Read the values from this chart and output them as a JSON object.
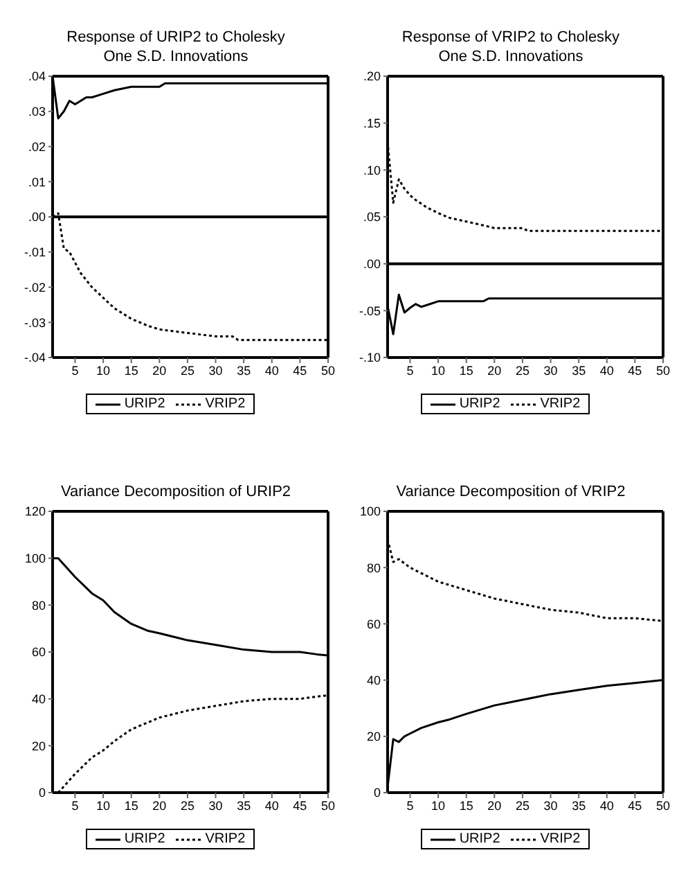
{
  "chart_data": [
    {
      "type": "line",
      "title": "Response of URIP2 to Cholesky One S.D. Innovations",
      "xlim": [
        1,
        50
      ],
      "xticks": [
        5,
        10,
        15,
        20,
        25,
        30,
        35,
        40,
        45,
        50
      ],
      "ylim": [
        -0.04,
        0.04
      ],
      "yticks": [
        {
          "value": -0.04,
          "label": "-.04"
        },
        {
          "value": -0.03,
          "label": "-.03"
        },
        {
          "value": -0.02,
          "label": "-.02"
        },
        {
          "value": -0.01,
          "label": "-.01"
        },
        {
          "value": 0,
          "label": ".00"
        },
        {
          "value": 0.01,
          "label": ".01"
        },
        {
          "value": 0.02,
          "label": ".02"
        },
        {
          "value": 0.03,
          "label": ".03"
        },
        {
          "value": 0.04,
          "label": ".04"
        }
      ],
      "legend": "bottom",
      "ref_lines": [
        {
          "axis": "y",
          "value": 0,
          "color": "#000000"
        }
      ],
      "series": [
        {
          "name": "URIP2",
          "color": "#000000",
          "line_style": "solid",
          "x": [
            1,
            2,
            3,
            4,
            5,
            6,
            7,
            8,
            10,
            12,
            15,
            20,
            21,
            30,
            40,
            50
          ],
          "values": [
            0.04,
            0.028,
            0.03,
            0.033,
            0.032,
            0.033,
            0.034,
            0.034,
            0.035,
            0.036,
            0.037,
            0.037,
            0.038,
            0.038,
            0.038,
            0.038
          ]
        },
        {
          "name": "VRIP2",
          "color": "#000000",
          "line_style": "dotted",
          "x": [
            1,
            2,
            3,
            4,
            5,
            6,
            7,
            8,
            10,
            12,
            15,
            18,
            20,
            25,
            30,
            33,
            34,
            40,
            50
          ],
          "values": [
            0.0,
            0.001,
            -0.009,
            -0.01,
            -0.013,
            -0.016,
            -0.018,
            -0.02,
            -0.023,
            -0.026,
            -0.029,
            -0.031,
            -0.032,
            -0.033,
            -0.034,
            -0.034,
            -0.035,
            -0.035,
            -0.035
          ]
        }
      ]
    },
    {
      "type": "line",
      "title": "Response of VRIP2 to Cholesky One S.D. Innovations",
      "xlim": [
        1,
        50
      ],
      "xticks": [
        5,
        10,
        15,
        20,
        25,
        30,
        35,
        40,
        45,
        50
      ],
      "ylim": [
        -0.1,
        0.2
      ],
      "yticks": [
        {
          "value": -0.1,
          "label": "-.10"
        },
        {
          "value": -0.05,
          "label": "-.05"
        },
        {
          "value": 0,
          "label": ".00"
        },
        {
          "value": 0.05,
          "label": ".05"
        },
        {
          "value": 0.1,
          "label": ".10"
        },
        {
          "value": 0.15,
          "label": ".15"
        },
        {
          "value": 0.2,
          "label": ".20"
        }
      ],
      "legend": "bottom",
      "ref_lines": [
        {
          "axis": "y",
          "value": 0,
          "color": "#000000"
        }
      ],
      "series": [
        {
          "name": "URIP2",
          "color": "#000000",
          "line_style": "solid",
          "x": [
            1,
            2,
            3,
            4,
            5,
            6,
            7,
            8,
            10,
            15,
            18,
            19,
            30,
            50
          ],
          "values": [
            -0.045,
            -0.075,
            -0.033,
            -0.052,
            -0.047,
            -0.043,
            -0.046,
            -0.044,
            -0.04,
            -0.04,
            -0.04,
            -0.037,
            -0.037,
            -0.037
          ]
        },
        {
          "name": "VRIP2",
          "color": "#000000",
          "line_style": "dotted",
          "x": [
            1,
            2,
            3,
            4,
            5,
            6,
            7,
            8,
            10,
            12,
            15,
            18,
            20,
            25,
            26,
            50
          ],
          "values": [
            0.13,
            0.065,
            0.09,
            0.08,
            0.073,
            0.068,
            0.064,
            0.06,
            0.054,
            0.049,
            0.045,
            0.041,
            0.038,
            0.038,
            0.035,
            0.035
          ]
        }
      ]
    },
    {
      "type": "line",
      "title": "Variance Decomposition of URIP2",
      "xlim": [
        1,
        50
      ],
      "xticks": [
        5,
        10,
        15,
        20,
        25,
        30,
        35,
        40,
        45,
        50
      ],
      "ylim": [
        0,
        120
      ],
      "yticks": [
        0,
        20,
        40,
        60,
        80,
        100,
        120
      ],
      "legend": "bottom",
      "series": [
        {
          "name": "URIP2",
          "color": "#000000",
          "line_style": "solid",
          "x": [
            1,
            2,
            5,
            8,
            10,
            12,
            15,
            18,
            20,
            25,
            30,
            35,
            40,
            45,
            48,
            50
          ],
          "values": [
            100,
            100,
            92,
            85,
            82,
            77,
            72,
            69,
            68,
            65,
            63,
            61,
            60,
            60,
            59,
            58.5
          ]
        },
        {
          "name": "VRIP2",
          "color": "#000000",
          "line_style": "dotted",
          "x": [
            1,
            2,
            5,
            8,
            10,
            12,
            15,
            18,
            20,
            25,
            30,
            35,
            40,
            45,
            48,
            50
          ],
          "values": [
            0,
            0,
            8,
            15,
            18,
            22,
            27,
            30,
            32,
            35,
            37,
            39,
            40,
            40,
            41,
            41.5
          ]
        }
      ]
    },
    {
      "type": "line",
      "title": "Variance Decomposition of VRIP2",
      "xlim": [
        1,
        50
      ],
      "xticks": [
        5,
        10,
        15,
        20,
        25,
        30,
        35,
        40,
        45,
        50
      ],
      "ylim": [
        0,
        100
      ],
      "yticks": [
        0,
        20,
        40,
        60,
        80,
        100
      ],
      "legend": "bottom",
      "series": [
        {
          "name": "URIP2",
          "color": "#000000",
          "line_style": "solid",
          "x": [
            1,
            2,
            3,
            4,
            5,
            7,
            10,
            12,
            15,
            20,
            25,
            30,
            35,
            40,
            45,
            50
          ],
          "values": [
            2,
            19,
            18,
            20,
            21,
            23,
            25,
            26,
            28,
            31,
            33,
            35,
            36.5,
            38,
            39,
            40
          ]
        },
        {
          "name": "VRIP2",
          "color": "#000000",
          "line_style": "dotted",
          "x": [
            1,
            2,
            3,
            5,
            7,
            10,
            15,
            20,
            25,
            30,
            35,
            40,
            45,
            50
          ],
          "values": [
            90,
            82,
            83,
            80,
            78,
            75,
            72,
            69,
            67,
            65,
            64,
            62,
            62,
            61
          ]
        }
      ]
    }
  ]
}
